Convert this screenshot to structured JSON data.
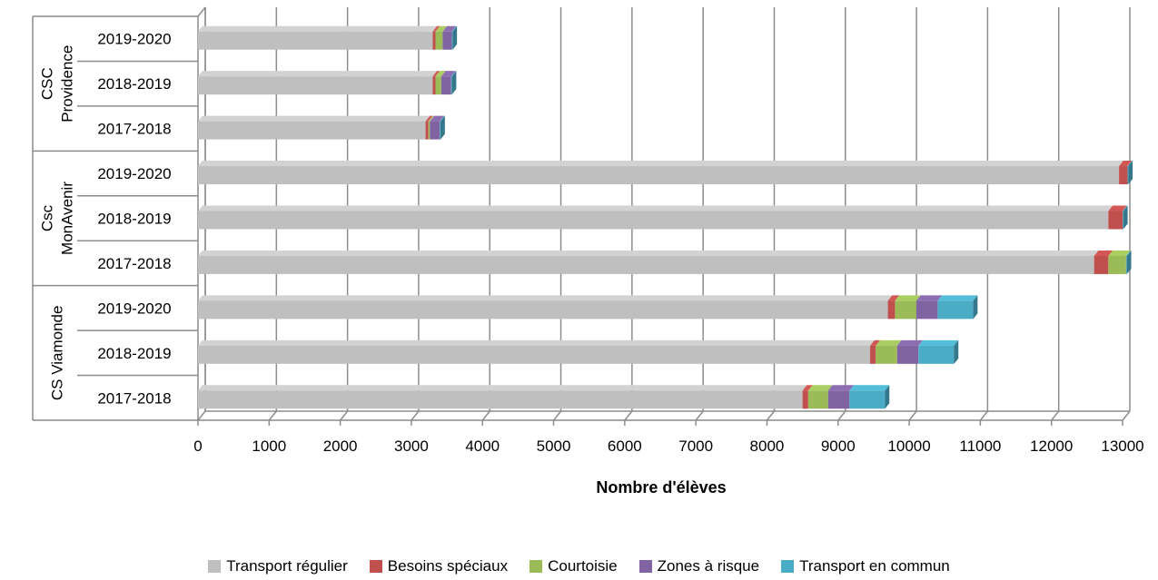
{
  "chart_data": {
    "type": "bar",
    "orientation": "horizontal",
    "stacked": true,
    "xlabel": "Nombre d'élèves",
    "xlim": [
      0,
      13000
    ],
    "xticks": [
      0,
      1000,
      2000,
      3000,
      4000,
      5000,
      6000,
      7000,
      8000,
      9000,
      10000,
      11000,
      12000,
      13000
    ],
    "grid": true,
    "legend_position": "bottom",
    "groups": [
      {
        "name": "CSC Providence",
        "lines": [
          "CSC",
          "Providence"
        ],
        "categories": [
          "2019-2020",
          "2018-2019",
          "2017-2018"
        ]
      },
      {
        "name": "Csc MonAvenir",
        "lines": [
          "Csc",
          "MonAvenir"
        ],
        "categories": [
          "2019-2020",
          "2018-2019",
          "2017-2018"
        ]
      },
      {
        "name": "CS Viamonde",
        "lines": [
          "CS Viamonde"
        ],
        "categories": [
          "2019-2020",
          "2018-2019",
          "2017-2018"
        ]
      }
    ],
    "series": [
      {
        "name": "Transport régulier",
        "color": "#bfbfbf",
        "values": [
          3300,
          3300,
          3200,
          12950,
          12800,
          12600,
          9700,
          9450,
          8500
        ]
      },
      {
        "name": "Besoins spéciaux",
        "color": "#c0504d",
        "values": [
          40,
          40,
          40,
          120,
          200,
          200,
          100,
          80,
          80
        ]
      },
      {
        "name": "Courtoisie",
        "color": "#9bbb59",
        "values": [
          100,
          80,
          20,
          0,
          0,
          250,
          300,
          300,
          280
        ]
      },
      {
        "name": "Zones à risque",
        "color": "#8064a2",
        "values": [
          130,
          140,
          140,
          0,
          0,
          0,
          300,
          300,
          300
        ]
      },
      {
        "name": "Transport en commun",
        "color": "#4bacc6",
        "values": [
          10,
          10,
          10,
          10,
          10,
          10,
          500,
          500,
          500
        ]
      }
    ]
  }
}
